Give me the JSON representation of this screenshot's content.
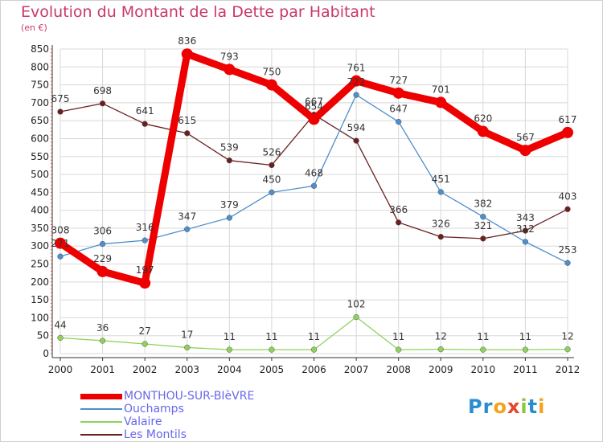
{
  "title": "Evolution du Montant de la Dette par Habitant",
  "subtitle": "(en €)",
  "logo": {
    "letters": [
      "P",
      "r",
      "o",
      "x",
      "i",
      "t",
      "i"
    ],
    "colors": [
      "#2a8ccf",
      "#2a8ccf",
      "#f4a21b",
      "#e6462a",
      "#8cc641",
      "#2a8ccf",
      "#f4a21b"
    ]
  },
  "chart_data": {
    "type": "line",
    "x": [
      "2000",
      "2001",
      "2002",
      "2003",
      "2004",
      "2005",
      "2006",
      "2007",
      "2008",
      "2009",
      "2010",
      "2011",
      "2012"
    ],
    "ylim": [
      0,
      850
    ],
    "yticks": [
      0,
      50,
      100,
      150,
      200,
      250,
      300,
      350,
      400,
      450,
      500,
      550,
      600,
      650,
      700,
      750,
      800,
      850
    ],
    "grid": true,
    "legend_position": "bottom-left",
    "series": [
      {
        "name": "Les Montils",
        "color": "#6b1f1f",
        "values": [
          675,
          698,
          641,
          615,
          539,
          526,
          667,
          594,
          366,
          326,
          321,
          343,
          403
        ],
        "labels": [
          "675",
          "698",
          "641",
          "615",
          "539",
          "526",
          "667",
          "594",
          "366",
          "326",
          "321",
          "343",
          "403"
        ]
      },
      {
        "name": "Valaire",
        "color": "#8fd25a",
        "values": [
          44,
          36,
          27,
          17,
          11,
          11,
          11,
          102,
          11,
          12,
          11,
          11,
          12
        ],
        "labels": [
          "44",
          "36",
          "27",
          "17",
          "11",
          "11",
          "11",
          "102",
          "11",
          "12",
          "11",
          "11",
          "12"
        ]
      },
      {
        "name": "Ouchamps",
        "color": "#4d8ecc",
        "values": [
          271,
          306,
          316,
          347,
          379,
          450,
          468,
          722,
          647,
          451,
          382,
          312,
          253
        ],
        "labels": [
          "271",
          "306",
          "316",
          "347",
          "379",
          "450",
          "468",
          "722",
          "647",
          "451",
          "382",
          "312",
          "253"
        ]
      },
      {
        "name": "MONTHOU-SUR-BIèVRE",
        "color": "#ee0000",
        "values": [
          308,
          229,
          197,
          836,
          793,
          750,
          654,
          761,
          727,
          701,
          620,
          567,
          617
        ],
        "labels": [
          "308",
          "229",
          "197",
          "836",
          "793",
          "750",
          "654",
          "761",
          "727",
          "701",
          "620",
          "567",
          "617"
        ]
      }
    ],
    "legend": [
      "MONTHOU-SUR-BIèVRE",
      "Ouchamps",
      "Valaire",
      "Les Montils"
    ]
  }
}
